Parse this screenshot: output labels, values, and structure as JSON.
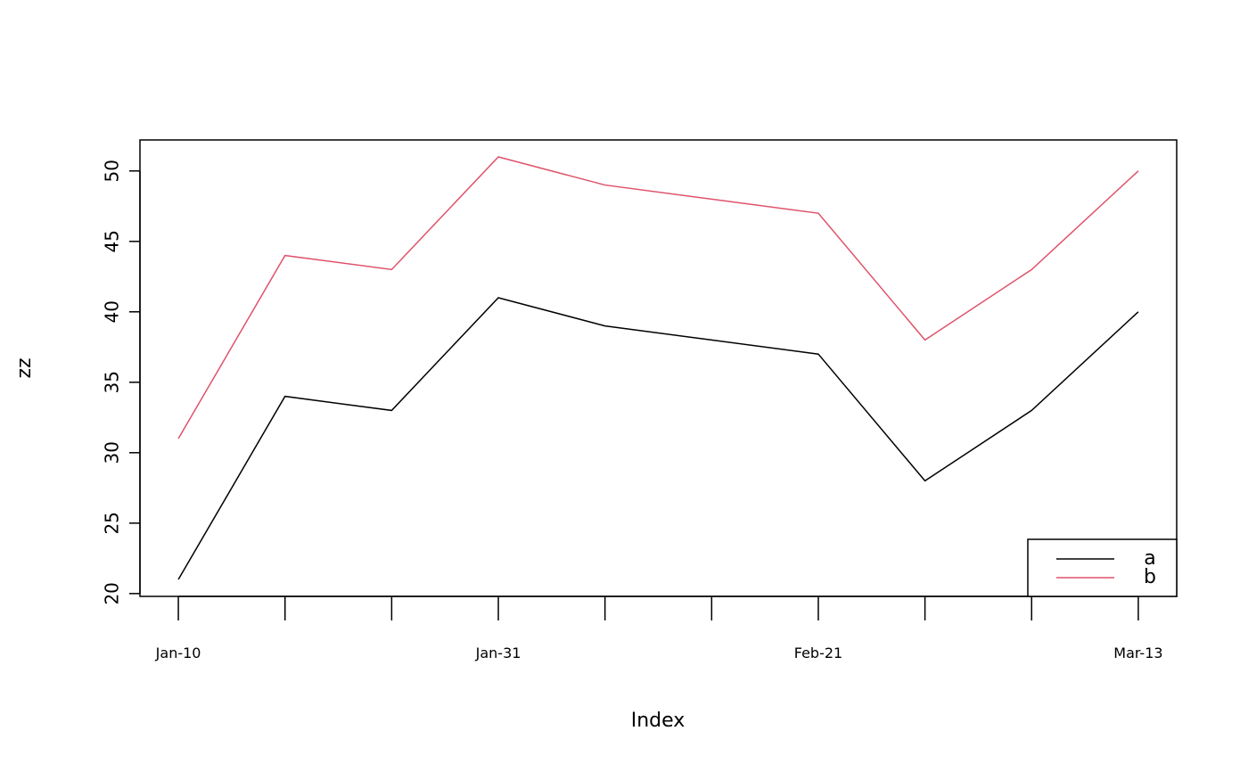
{
  "chart_data": {
    "type": "line",
    "x_label": "Index",
    "y_label": "zz",
    "categories": [
      "Jan-10",
      null,
      null,
      "Jan-31",
      null,
      null,
      "Feb-21",
      null,
      null,
      "Mar-13"
    ],
    "series": [
      {
        "name": "a",
        "color": "#000000",
        "values": [
          21,
          34,
          33,
          41,
          39,
          38,
          37,
          28,
          33,
          40
        ]
      },
      {
        "name": "b",
        "color": "#DF536B",
        "values": [
          31,
          44,
          43,
          51,
          49,
          48,
          47,
          38,
          43,
          50
        ]
      }
    ],
    "ylim": [
      19.8,
      52.2
    ],
    "yticks": [
      20,
      25,
      30,
      35,
      40,
      45,
      50
    ],
    "legend": "bottomright"
  }
}
